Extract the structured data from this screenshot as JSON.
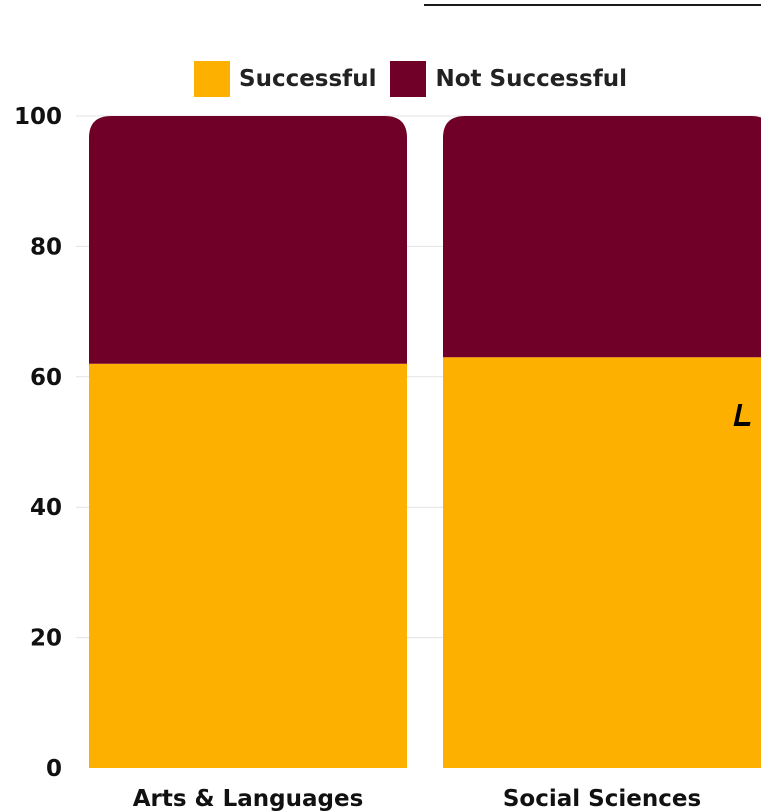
{
  "colors": {
    "successful": "#FDB000",
    "not_successful": "#700027",
    "gridline": "#e3e3e3",
    "text": "#111111"
  },
  "legend": {
    "items": [
      {
        "label": "Successful",
        "color": "#FDB000"
      },
      {
        "label": "Not Successful",
        "color": "#700027"
      }
    ]
  },
  "chart_data": {
    "type": "bar",
    "stacked": true,
    "categories": [
      "Arts & Languages",
      "Social Sciences"
    ],
    "series": [
      {
        "name": "Successful",
        "values": [
          62,
          63
        ]
      },
      {
        "name": "Not Successful",
        "values": [
          38,
          37
        ]
      }
    ],
    "yticks": [
      0,
      20,
      40,
      60,
      80,
      100
    ],
    "ylim": [
      0,
      100
    ],
    "grid": true,
    "legend_position": "top"
  }
}
